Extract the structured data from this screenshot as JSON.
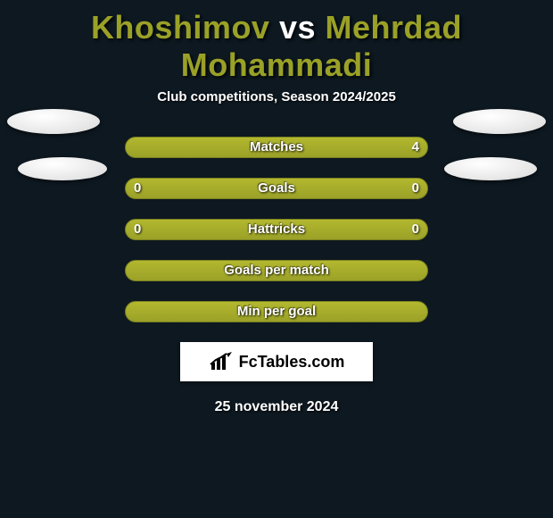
{
  "title": {
    "player1": "Khoshimov",
    "vs": "vs",
    "player2": "Mehrdad Mohammadi",
    "p1_color": "#9aa127",
    "p2_color": "#9aa127",
    "vs_color": "#ffffff"
  },
  "subtitle": "Club competitions, Season 2024/2025",
  "background_color": "#0d1820",
  "bar_color": "#9aa127",
  "rows": [
    {
      "label": "Matches",
      "left": "",
      "right": "4",
      "left_width_pct": 0,
      "right_width_pct": 100
    },
    {
      "label": "Goals",
      "left": "0",
      "right": "0",
      "left_width_pct": 100,
      "right_width_pct": 100
    },
    {
      "label": "Hattricks",
      "left": "0",
      "right": "0",
      "left_width_pct": 100,
      "right_width_pct": 100
    },
    {
      "label": "Goals per match",
      "left": "",
      "right": "",
      "left_width_pct": 100,
      "right_width_pct": 100
    },
    {
      "label": "Min per goal",
      "left": "",
      "right": "",
      "left_width_pct": 100,
      "right_width_pct": 100
    }
  ],
  "badge": {
    "text": "FcTables.com",
    "icon": "chart-icon"
  },
  "date": "25 november 2024",
  "ellipses": [
    {
      "class": "ell-1"
    },
    {
      "class": "ell-2"
    },
    {
      "class": "ell-3"
    },
    {
      "class": "ell-4"
    }
  ]
}
